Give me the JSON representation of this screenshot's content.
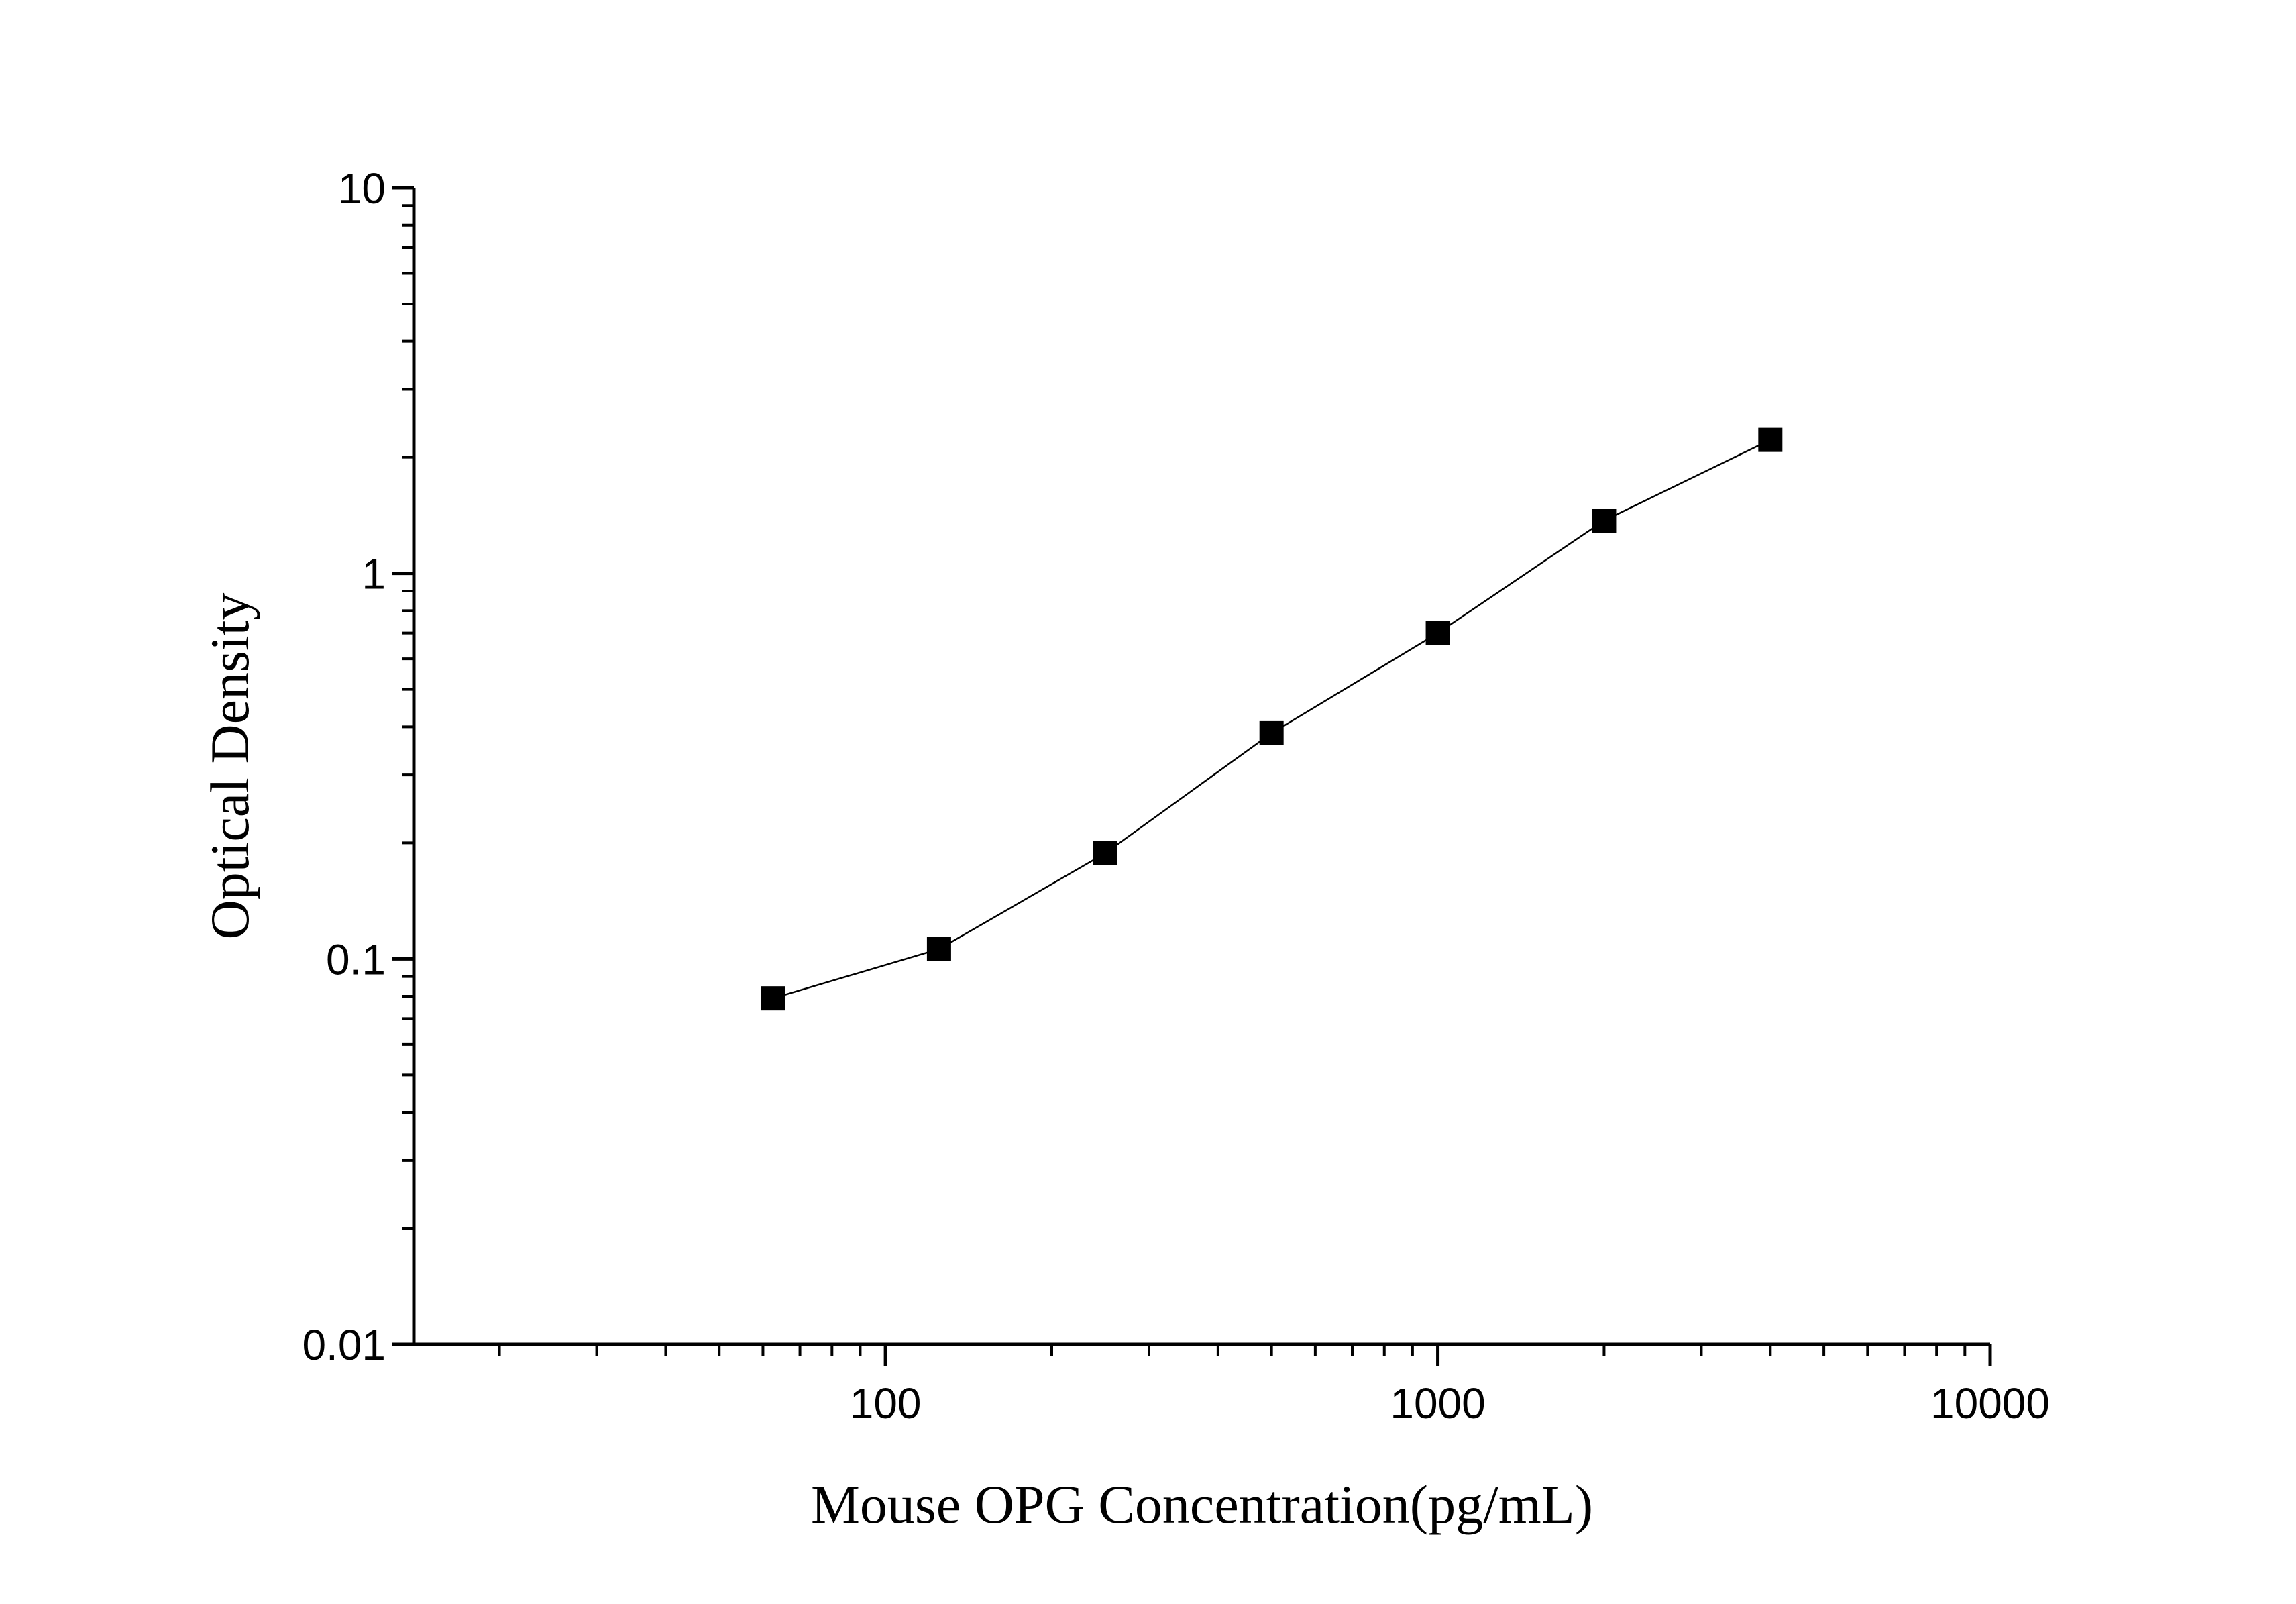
{
  "chart_data": {
    "type": "line",
    "title": "",
    "xlabel": "Mouse OPG Concentration(pg/mL)",
    "ylabel": "Optical Density",
    "xscale": "log",
    "yscale": "log",
    "xlim": [
      14,
      10000
    ],
    "ylim": [
      0.01,
      10
    ],
    "x_ticks": [
      {
        "value": 100,
        "label": "100"
      },
      {
        "value": 1000,
        "label": "1000"
      },
      {
        "value": 10000,
        "label": "10000"
      }
    ],
    "y_ticks": [
      {
        "value": 0.01,
        "label": "0.01"
      },
      {
        "value": 0.1,
        "label": "0.1"
      },
      {
        "value": 1,
        "label": "1"
      },
      {
        "value": 10,
        "label": "10"
      }
    ],
    "grid": false,
    "legend": "none",
    "series": [
      {
        "marker": "square",
        "color": "#000000",
        "x": [
          62.5,
          125,
          250,
          500,
          1000,
          2000,
          4000
        ],
        "y": [
          0.079,
          0.106,
          0.188,
          0.385,
          0.7,
          1.37,
          2.22
        ]
      }
    ]
  }
}
